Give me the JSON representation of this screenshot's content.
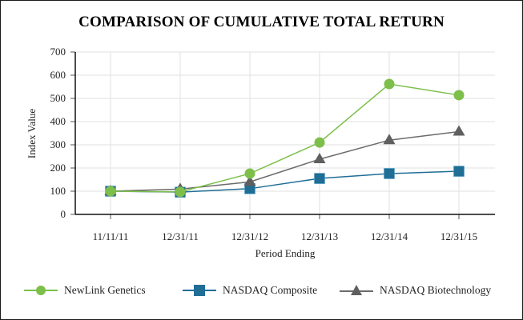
{
  "chart_data": {
    "type": "line",
    "title": "COMPARISON OF CUMULATIVE TOTAL RETURN",
    "xlabel": "Period Ending",
    "ylabel": "Index Value",
    "ylim": [
      0,
      700
    ],
    "yticks": [
      "0",
      "100",
      "200",
      "300",
      "400",
      "500",
      "600",
      "700"
    ],
    "grid": true,
    "legend_position": "bottom",
    "categories": [
      "11/11/11",
      "12/31/11",
      "12/31/12",
      "12/31/13",
      "12/31/14",
      "12/31/15"
    ],
    "series": [
      {
        "name": "NewLink Genetics",
        "marker": "circle",
        "color": "#7dbf4a",
        "values": [
          100,
          97,
          176,
          310,
          562,
          514
        ]
      },
      {
        "name": "NASDAQ Composite",
        "marker": "square",
        "color": "#206e96",
        "values": [
          100,
          96,
          111,
          155,
          176,
          186
        ]
      },
      {
        "name": "NASDAQ Biotechnology",
        "marker": "triangle",
        "color": "#5f5f5f",
        "values": [
          100,
          109,
          140,
          238,
          320,
          357
        ]
      }
    ]
  }
}
